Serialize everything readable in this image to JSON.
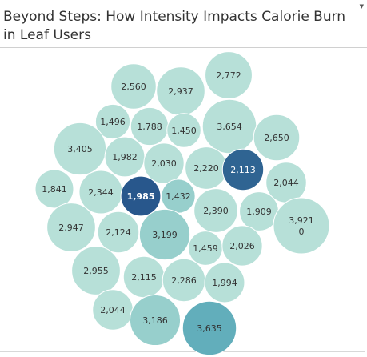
{
  "title": "Beyond Steps: How Intensity Impacts Calorie Burn in Leaf Users",
  "dropdown_icon": "caret-down-icon",
  "colors": {
    "light": "#b7e0d8",
    "medium": "#97cfcc",
    "teal": "#62aebb",
    "dark": "#2f6492",
    "darker": "#28578c",
    "text_dark": "#333333",
    "text_light": "#ffffff"
  },
  "chart_data": {
    "type": "bubble",
    "title": "Beyond Steps: How Intensity Impacts Calorie Burn in Leaf Users",
    "values": [
      {
        "label": "2,772",
        "value": 2772,
        "shade": "light"
      },
      {
        "label": "2,560",
        "value": 2560,
        "shade": "light"
      },
      {
        "label": "2,937",
        "value": 2937,
        "shade": "light"
      },
      {
        "label": "1,496",
        "value": 1496,
        "shade": "light"
      },
      {
        "label": "1,788",
        "value": 1788,
        "shade": "light"
      },
      {
        "label": "1,450",
        "value": 1450,
        "shade": "light"
      },
      {
        "label": "3,654",
        "value": 3654,
        "shade": "light"
      },
      {
        "label": "3,405",
        "value": 3405,
        "shade": "light"
      },
      {
        "label": "2,650",
        "value": 2650,
        "shade": "light"
      },
      {
        "label": "1,982",
        "value": 1982,
        "shade": "light"
      },
      {
        "label": "2,030",
        "value": 2030,
        "shade": "light"
      },
      {
        "label": "2,220",
        "value": 2220,
        "shade": "light"
      },
      {
        "label": "2,113",
        "value": 2113,
        "shade": "dark"
      },
      {
        "label": "2,044",
        "value": 2044,
        "shade": "light"
      },
      {
        "label": "1,841",
        "value": 1841,
        "shade": "light"
      },
      {
        "label": "2,344",
        "value": 2344,
        "shade": "light"
      },
      {
        "label": "1,985",
        "value": 1985,
        "shade": "darker"
      },
      {
        "label": "1,432",
        "value": 1432,
        "shade": "medium"
      },
      {
        "label": "2,390",
        "value": 2390,
        "shade": "light"
      },
      {
        "label": "1,909",
        "value": 1909,
        "shade": "light"
      },
      {
        "label": "3,921\n0",
        "value": 3921,
        "shade": "light"
      },
      {
        "label": "2,947",
        "value": 2947,
        "shade": "light"
      },
      {
        "label": "2,124",
        "value": 2124,
        "shade": "light"
      },
      {
        "label": "3,199",
        "value": 3199,
        "shade": "medium"
      },
      {
        "label": "1,459",
        "value": 1459,
        "shade": "light"
      },
      {
        "label": "2,026",
        "value": 2026,
        "shade": "light"
      },
      {
        "label": "2,955",
        "value": 2955,
        "shade": "light"
      },
      {
        "label": "2,115",
        "value": 2115,
        "shade": "light"
      },
      {
        "label": "2,286",
        "value": 2286,
        "shade": "light"
      },
      {
        "label": "1,994",
        "value": 1994,
        "shade": "light"
      },
      {
        "label": "2,044",
        "value": 2044,
        "shade": "light"
      },
      {
        "label": "3,186",
        "value": 3186,
        "shade": "medium"
      },
      {
        "label": "3,635",
        "value": 3635,
        "shade": "teal"
      }
    ]
  }
}
